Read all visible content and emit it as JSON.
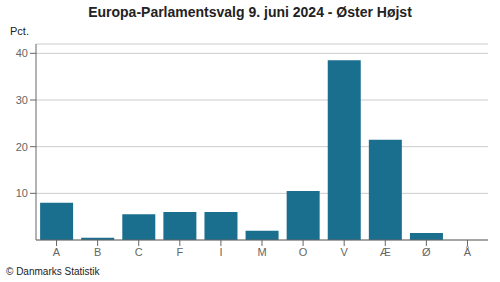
{
  "chart_data": {
    "type": "bar",
    "title": "Europa-Parlamentsvalg 9. juni 2024 - Øster Højst",
    "ylabel": "Pct.",
    "annotations": [
      "© Danmarks Statistik"
    ],
    "categories": [
      "A",
      "B",
      "C",
      "F",
      "I",
      "M",
      "O",
      "V",
      "Æ",
      "Ø",
      "Å"
    ],
    "values": [
      8.0,
      0.5,
      5.5,
      6.0,
      6.0,
      2.0,
      10.5,
      38.5,
      21.5,
      1.5,
      0.0
    ],
    "color": "#1a6e8e",
    "ylim": [
      0,
      42
    ],
    "yticks": [
      10,
      20,
      30,
      40
    ],
    "grid": true
  }
}
